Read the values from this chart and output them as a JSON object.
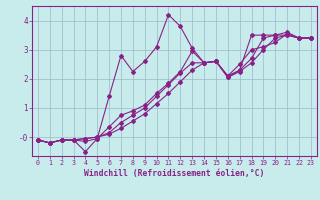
{
  "title": "",
  "xlabel": "Windchill (Refroidissement éolien,°C)",
  "ylabel": "",
  "bg_color": "#c8ecec",
  "line_color": "#882288",
  "grid_color": "#9ab8c8",
  "xlim": [
    -0.5,
    23.5
  ],
  "ylim": [
    -0.65,
    4.5
  ],
  "xticks": [
    0,
    1,
    2,
    3,
    4,
    5,
    6,
    7,
    8,
    9,
    10,
    11,
    12,
    13,
    14,
    15,
    16,
    17,
    18,
    19,
    20,
    21,
    22,
    23
  ],
  "yticks": [
    0,
    1,
    2,
    3,
    4
  ],
  "ytick_labels": [
    "-0",
    "1",
    "2",
    "3",
    "4"
  ],
  "series": [
    {
      "x": [
        0,
        1,
        2,
        3,
        4,
        5,
        6,
        7,
        8,
        9,
        10,
        11,
        12,
        13,
        14,
        15,
        16,
        17,
        18,
        19,
        20,
        21,
        22,
        23
      ],
      "y": [
        -0.1,
        -0.2,
        -0.1,
        -0.1,
        -0.15,
        -0.05,
        1.4,
        2.8,
        2.25,
        2.6,
        3.1,
        4.2,
        3.8,
        3.05,
        2.55,
        2.6,
        2.05,
        2.3,
        3.5,
        3.5,
        3.5,
        3.6,
        3.4,
        3.4
      ]
    },
    {
      "x": [
        0,
        1,
        2,
        3,
        4,
        5,
        6,
        7,
        8,
        9,
        10,
        11,
        12,
        13,
        14,
        15,
        16,
        17,
        18,
        19,
        20,
        21,
        22,
        23
      ],
      "y": [
        -0.1,
        -0.2,
        -0.1,
        -0.1,
        -0.5,
        -0.05,
        0.35,
        0.75,
        0.9,
        1.1,
        1.5,
        1.85,
        2.25,
        2.95,
        2.55,
        2.6,
        2.05,
        2.25,
        2.55,
        3.0,
        3.4,
        3.5,
        3.4,
        3.4
      ]
    },
    {
      "x": [
        0,
        1,
        2,
        3,
        4,
        5,
        6,
        7,
        8,
        9,
        10,
        11,
        12,
        13,
        14,
        15,
        16,
        17,
        18,
        19,
        20,
        21,
        22,
        23
      ],
      "y": [
        -0.1,
        -0.2,
        -0.1,
        -0.1,
        -0.05,
        -0.0,
        0.15,
        0.5,
        0.75,
        1.0,
        1.4,
        1.8,
        2.2,
        2.55,
        2.55,
        2.6,
        2.1,
        2.5,
        3.0,
        3.1,
        3.25,
        3.55,
        3.4,
        3.4
      ]
    },
    {
      "x": [
        0,
        1,
        2,
        3,
        4,
        5,
        6,
        7,
        8,
        9,
        10,
        11,
        12,
        13,
        14,
        15,
        16,
        17,
        18,
        19,
        20,
        21,
        22,
        23
      ],
      "y": [
        -0.1,
        -0.2,
        -0.1,
        -0.1,
        -0.05,
        -0.0,
        0.1,
        0.3,
        0.55,
        0.8,
        1.15,
        1.5,
        1.9,
        2.3,
        2.55,
        2.6,
        2.1,
        2.3,
        2.7,
        3.4,
        3.5,
        3.5,
        3.4,
        3.4
      ]
    }
  ]
}
